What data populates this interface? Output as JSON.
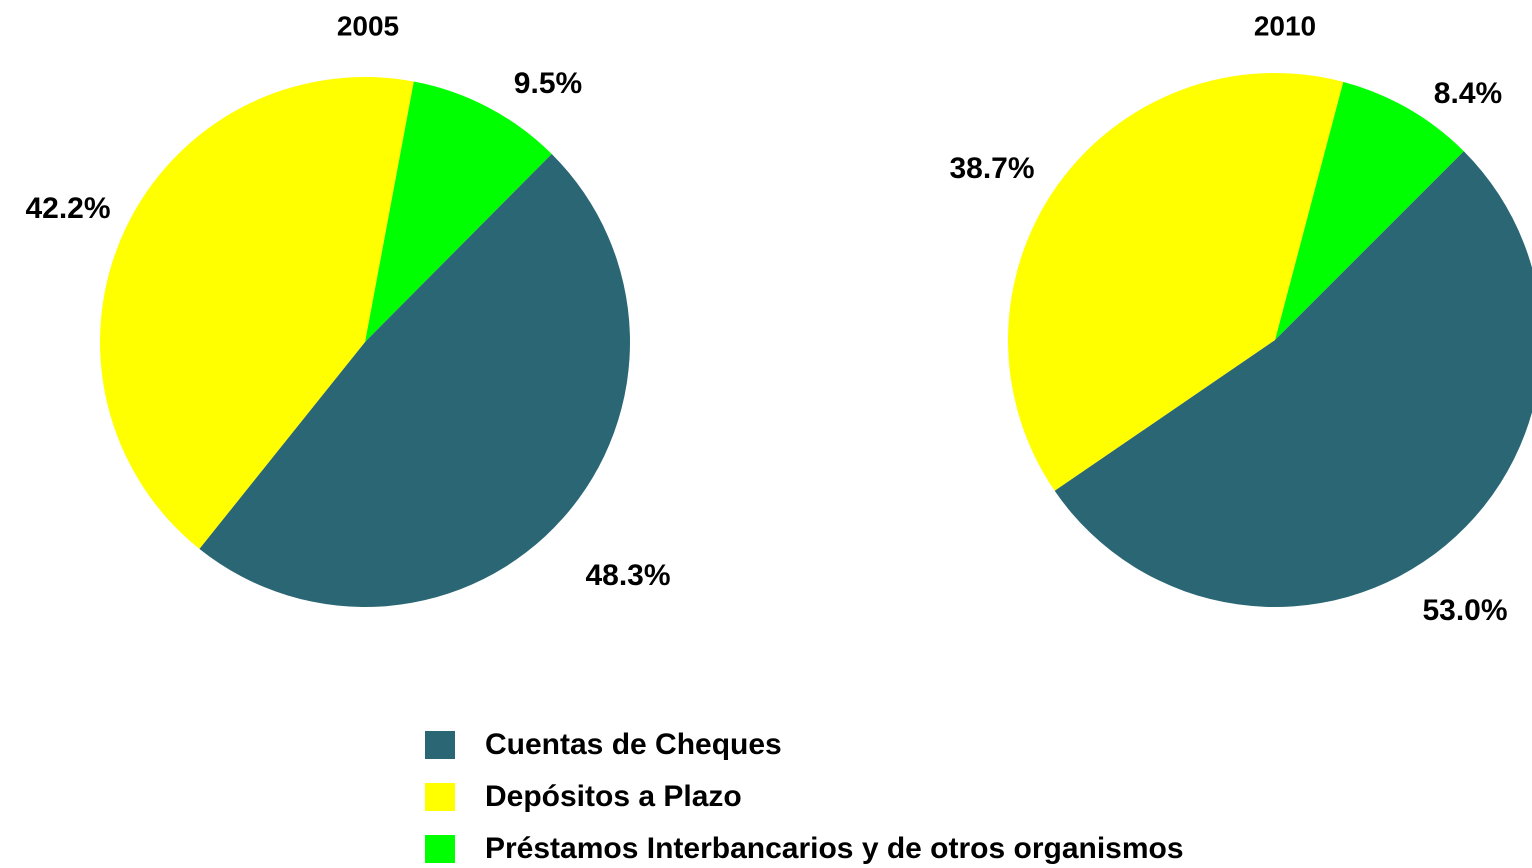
{
  "chart_data": [
    {
      "type": "pie",
      "title": "2005",
      "categories": [
        "Cuentas de Cheques",
        "Depósitos a Plazo",
        "Préstamos Interbancarios y de otros organismos"
      ],
      "values": [
        48.3,
        42.2,
        9.5
      ],
      "value_labels": [
        "48.3%",
        "42.2%",
        "9.5%"
      ],
      "colors": [
        "#2a6674",
        "#ffff00",
        "#00ff00"
      ]
    },
    {
      "type": "pie",
      "title": "2010",
      "categories": [
        "Cuentas de Cheques",
        "Depósitos a Plazo",
        "Préstamos Interbancarios y de otros organismos"
      ],
      "values": [
        53.0,
        38.7,
        8.4
      ],
      "value_labels": [
        "53.0%",
        "38.7%",
        "8.4%"
      ],
      "colors": [
        "#2a6674",
        "#ffff00",
        "#00ff00"
      ]
    }
  ]
}
